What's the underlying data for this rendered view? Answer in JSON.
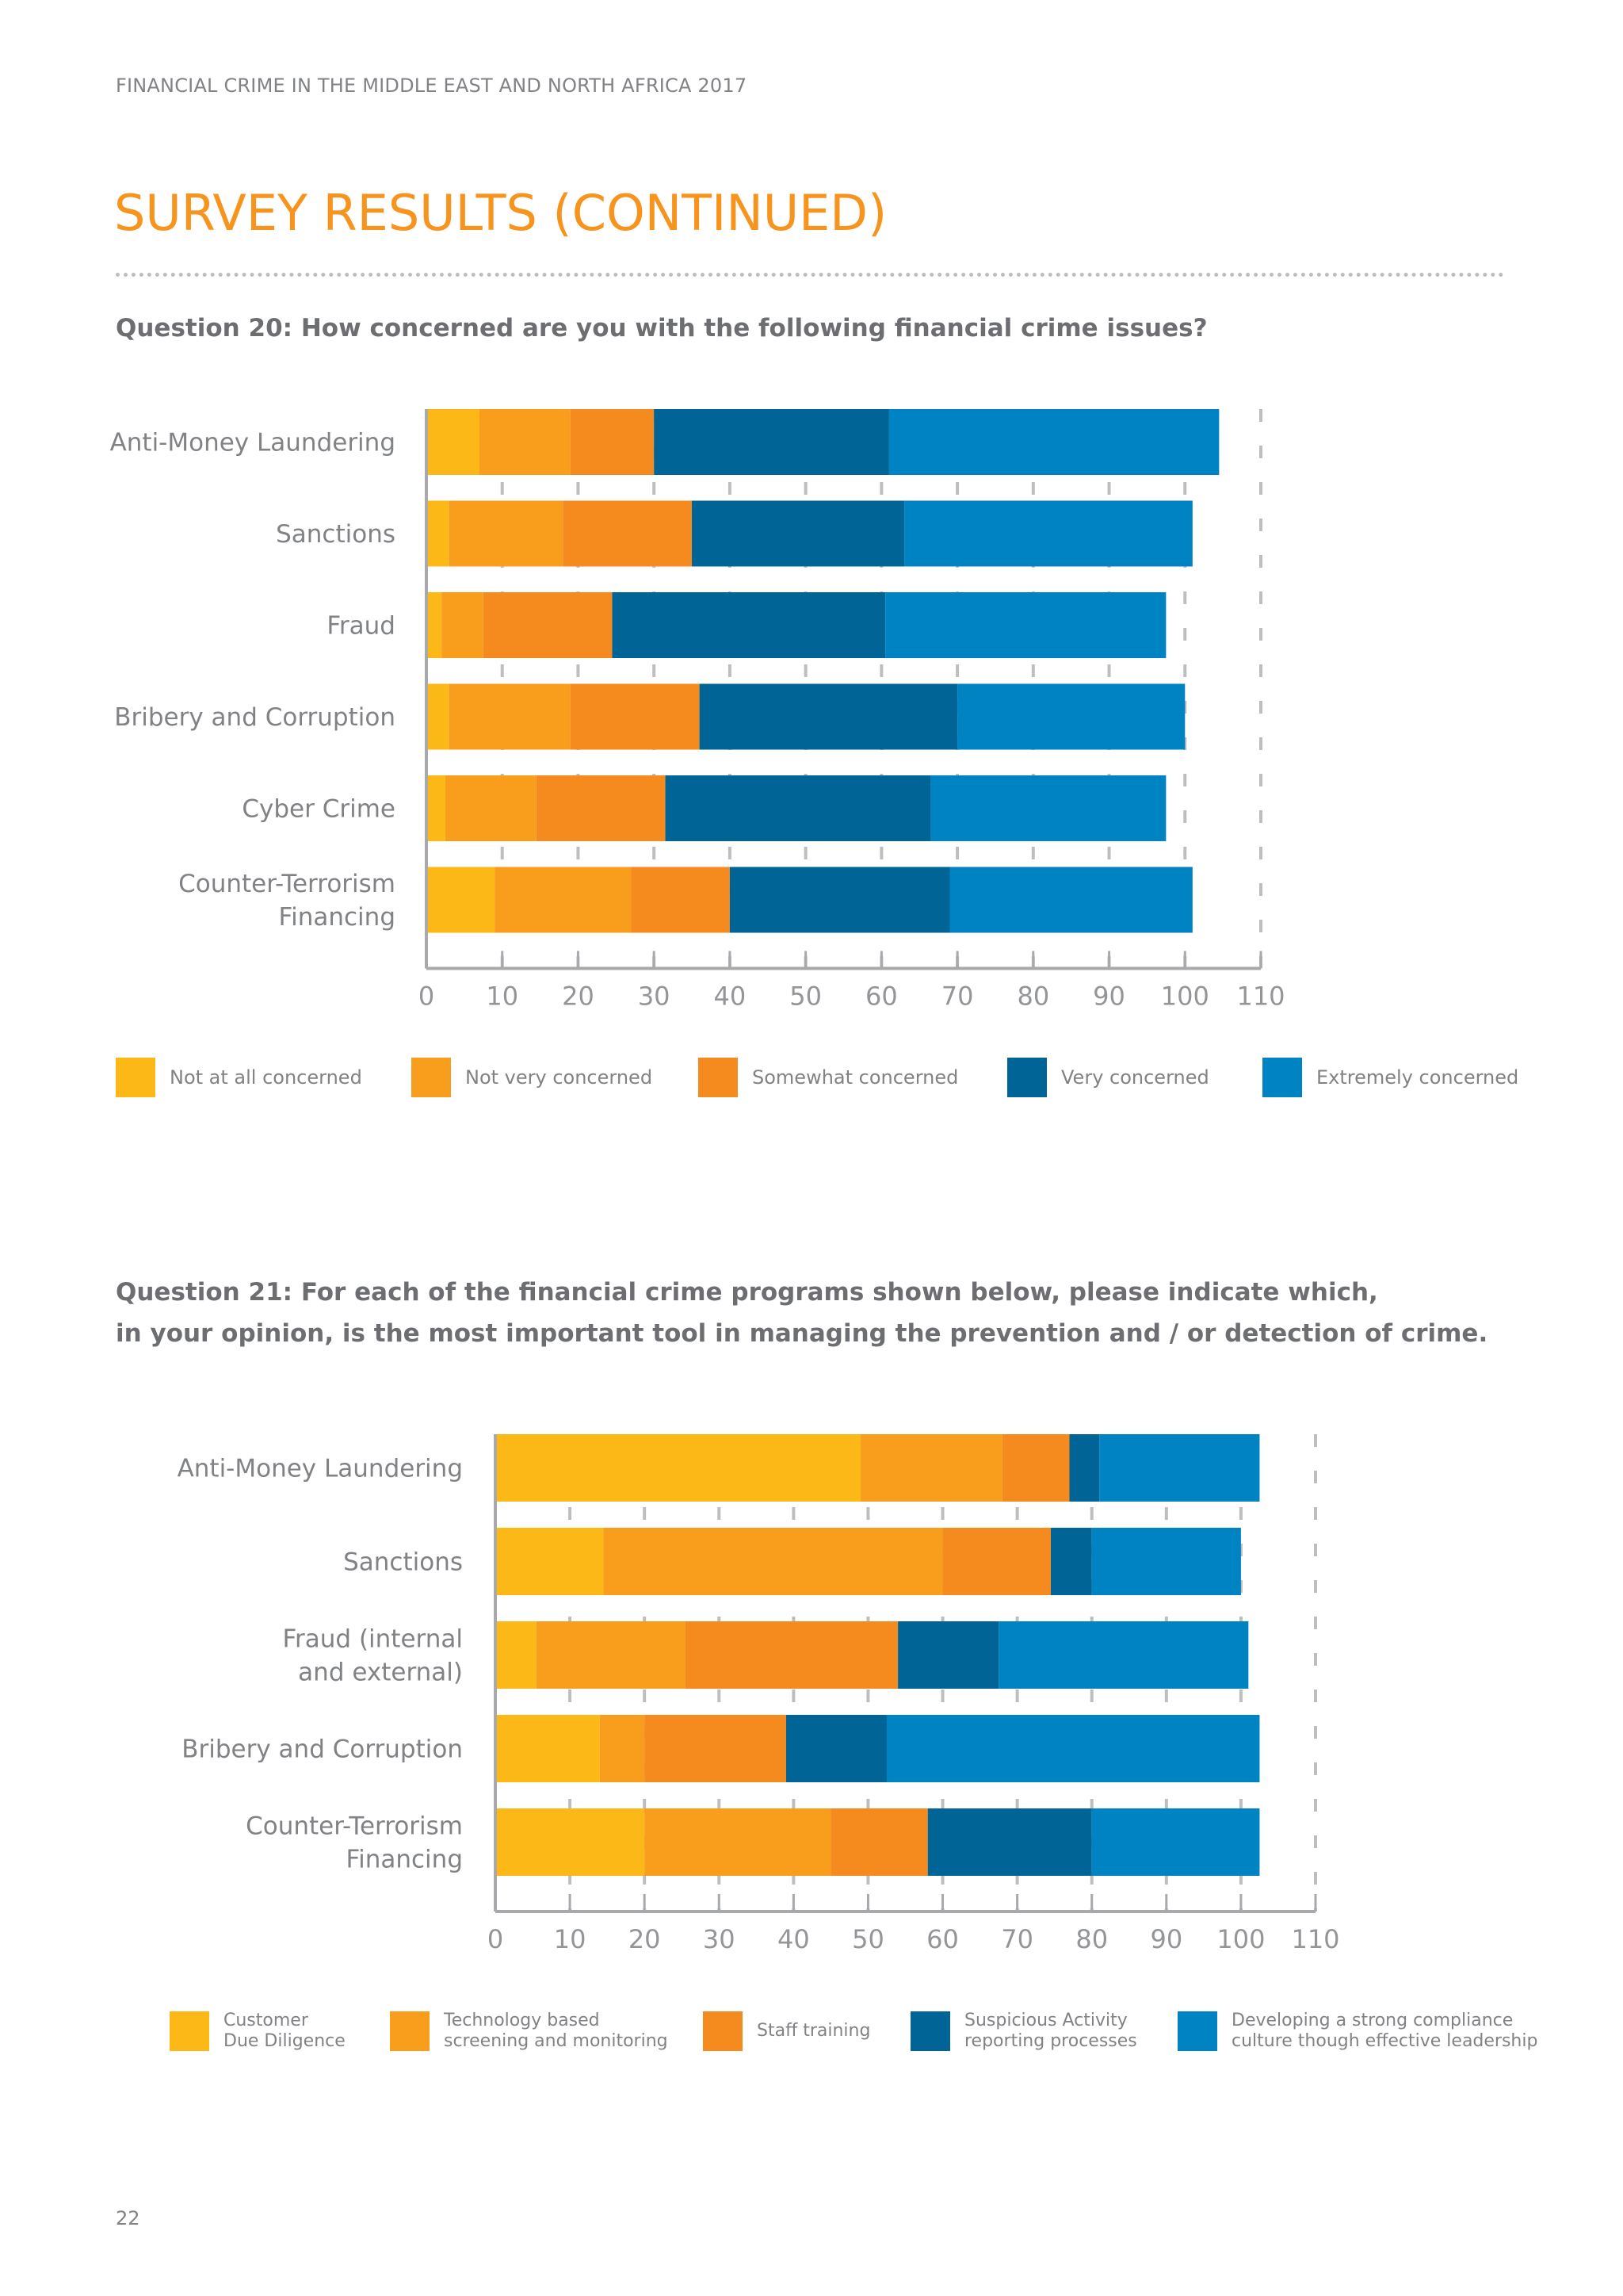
{
  "header": {
    "running_title": "FINANCIAL CRIME IN THE MIDDLE EAST AND NORTH AFRICA 2017"
  },
  "page_title": "SURVEY RESULTS (CONTINUED)",
  "page_number": "22",
  "questions": {
    "q20": "Question 20: How concerned are you with the following financial crime issues?",
    "q21_line1": "Question 21: For each of the financial crime programs shown below, please indicate which,",
    "q21_line2": "in your opinion, is the most important tool in managing the prevention and / or detection of crime."
  },
  "chart_data": [
    {
      "type": "bar",
      "orientation": "horizontal",
      "stacked": true,
      "title": "",
      "xlabel": "",
      "ylabel": "",
      "xlim": [
        0,
        110
      ],
      "xticks": [
        "0",
        "10",
        "20",
        "30",
        "40",
        "50",
        "60",
        "70",
        "80",
        "90",
        "100",
        "110"
      ],
      "grid": "dashed vertical",
      "legend_placement": "bottom",
      "categories": [
        [
          "Anti-Money Laundering"
        ],
        [
          "Sanctions"
        ],
        [
          "Fraud"
        ],
        [
          "Bribery and Corruption"
        ],
        [
          "Cyber Crime"
        ],
        [
          "Counter-Terrorism",
          "Financing"
        ]
      ],
      "series": [
        {
          "name": "Not at all concerned",
          "color": "#fcb816",
          "values": [
            7,
            3,
            2,
            3,
            2.5,
            9
          ]
        },
        {
          "name": "Not very concerned",
          "color": "#f89d1c",
          "values": [
            12,
            15,
            5.5,
            16,
            12,
            18
          ]
        },
        {
          "name": "Somewhat concerned",
          "color": "#f58a1f",
          "values": [
            11,
            17,
            17,
            17,
            17,
            13
          ]
        },
        {
          "name": "Very concerned",
          "color": "#006496",
          "values": [
            31,
            28,
            36,
            34,
            35,
            29
          ]
        },
        {
          "name": "Extremely concerned",
          "color": "#0083c2",
          "values": [
            43.5,
            38,
            37,
            30,
            31,
            32
          ]
        }
      ]
    },
    {
      "type": "bar",
      "orientation": "horizontal",
      "stacked": true,
      "title": "",
      "xlabel": "",
      "ylabel": "",
      "xlim": [
        0,
        110
      ],
      "xticks": [
        "0",
        "10",
        "20",
        "30",
        "40",
        "50",
        "60",
        "70",
        "80",
        "90",
        "100",
        "110"
      ],
      "grid": "dashed vertical",
      "legend_placement": "bottom",
      "categories": [
        [
          "Anti-Money Laundering"
        ],
        [
          "Sanctions"
        ],
        [
          "Fraud (internal",
          "and external)"
        ],
        [
          "Bribery and Corruption"
        ],
        [
          "Counter-Terrorism",
          "Financing"
        ]
      ],
      "series": [
        {
          "name": [
            "Customer",
            "Due Diligence"
          ],
          "color": "#fcb816",
          "values": [
            49,
            14.5,
            5.5,
            14,
            20
          ]
        },
        {
          "name": [
            "Technology based",
            "screening and monitoring"
          ],
          "color": "#f89d1c",
          "values": [
            19,
            45.5,
            20,
            6,
            25
          ]
        },
        {
          "name": [
            "Staff training"
          ],
          "color": "#f58a1f",
          "values": [
            9,
            14.5,
            28.5,
            19,
            13
          ]
        },
        {
          "name": [
            "Suspicious Activity",
            "reporting processes"
          ],
          "color": "#006496",
          "values": [
            4,
            5.5,
            13.5,
            13.5,
            22
          ]
        },
        {
          "name": [
            "Developing a strong compliance",
            "culture though effective leadership"
          ],
          "color": "#0083c2",
          "values": [
            21.5,
            20,
            33.5,
            50,
            22.5
          ]
        }
      ]
    }
  ]
}
